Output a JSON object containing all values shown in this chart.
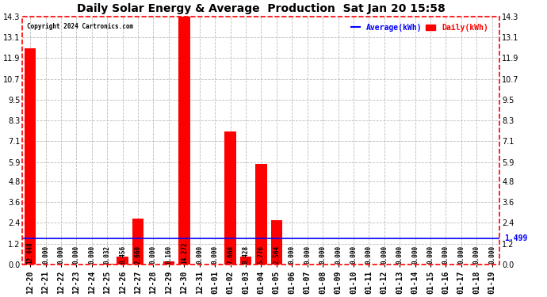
{
  "title": "Daily Solar Energy & Average  Production  Sat Jan 20 15:58",
  "copyright": "Copyright 2024 Cartronics.com",
  "legend_avg": "Average(kWh)",
  "legend_daily": "Daily(kWh)",
  "categories": [
    "12-20",
    "12-21",
    "12-22",
    "12-23",
    "12-24",
    "12-25",
    "12-26",
    "12-27",
    "12-28",
    "12-29",
    "12-30",
    "12-31",
    "01-01",
    "01-02",
    "01-03",
    "01-04",
    "01-05",
    "01-06",
    "01-07",
    "01-08",
    "01-09",
    "01-10",
    "01-11",
    "01-12",
    "01-13",
    "01-14",
    "01-15",
    "01-16",
    "01-17",
    "01-18",
    "01-19"
  ],
  "values": [
    12.448,
    0.0,
    0.0,
    0.0,
    0.0,
    0.032,
    0.456,
    2.66,
    0.0,
    0.16,
    14.272,
    0.0,
    0.0,
    7.668,
    0.428,
    5.776,
    2.564,
    0.0,
    0.0,
    0.0,
    0.0,
    0.0,
    0.0,
    0.0,
    0.0,
    0.0,
    0.0,
    0.0,
    0.0,
    0.0,
    0.0
  ],
  "value_labels": [
    "12.448",
    "0.000",
    "0.000",
    "0.000",
    "0.000",
    "0.032",
    "0.456",
    "2.660",
    "0.000",
    "0.160",
    "14.272",
    "0.000",
    "0.000",
    "7.668",
    "0.428",
    "5.776",
    "2.564",
    "0.000",
    "0.000",
    "0.000",
    "0.000",
    "0.000",
    "0.000",
    "0.000",
    "0.000",
    "0.000",
    "0.000",
    "0.000",
    "0.000",
    "0.000",
    "0.000"
  ],
  "average_value": 1.499,
  "bar_color": "#ff0000",
  "average_line_color": "#0000ff",
  "background_color": "#ffffff",
  "plot_bg_color": "#ffffff",
  "grid_color": "#bbbbbb",
  "title_color": "#000000",
  "bar_label_color": "#000000",
  "ylim": [
    0.0,
    14.3
  ],
  "yticks": [
    0.0,
    1.2,
    2.4,
    3.6,
    4.8,
    5.9,
    7.1,
    8.3,
    9.5,
    10.7,
    11.9,
    13.1,
    14.3
  ],
  "title_fontsize": 10,
  "label_fontsize": 5.5,
  "tick_fontsize": 7,
  "avg_label_last": "1.499",
  "dashed_border_color": "#ff0000"
}
